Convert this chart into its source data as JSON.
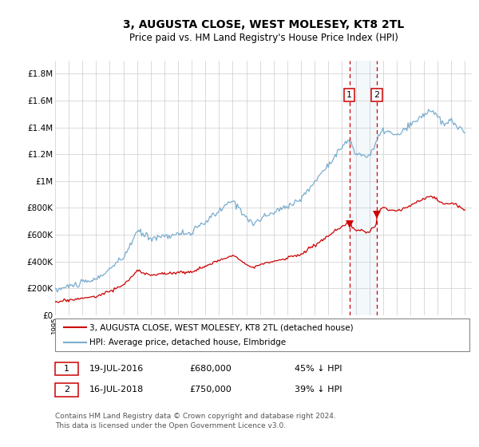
{
  "title": "3, AUGUSTA CLOSE, WEST MOLESEY, KT8 2TL",
  "subtitle": "Price paid vs. HM Land Registry's House Price Index (HPI)",
  "legend_line1": "3, AUGUSTA CLOSE, WEST MOLESEY, KT8 2TL (detached house)",
  "legend_line2": "HPI: Average price, detached house, Elmbridge",
  "sale1_date": "19-JUL-2016",
  "sale1_price": 680000,
  "sale2_date": "16-JUL-2018",
  "sale2_price": 750000,
  "sale1_pct": "45% ↓ HPI",
  "sale2_pct": "39% ↓ HPI",
  "footnote": "Contains HM Land Registry data © Crown copyright and database right 2024.\nThis data is licensed under the Open Government Licence v3.0.",
  "ylim": [
    0,
    1900000
  ],
  "yticks": [
    0,
    200000,
    400000,
    600000,
    800000,
    1000000,
    1200000,
    1400000,
    1600000,
    1800000
  ],
  "ytick_labels": [
    "£0",
    "£200K",
    "£400K",
    "£600K",
    "£800K",
    "£1M",
    "£1.2M",
    "£1.4M",
    "£1.6M",
    "£1.8M"
  ],
  "red_color": "#cc0000",
  "blue_color": "#7aadcf",
  "grid_color": "#cccccc",
  "background_color": "#ffffff",
  "shaded_color": "#d8e8f4",
  "marker_box_color": "#cc0000",
  "title_fontsize": 10,
  "subtitle_fontsize": 8.5,
  "axis_fontsize": 7.5,
  "legend_fontsize": 7.5,
  "table_fontsize": 8,
  "footnote_fontsize": 6.5,
  "sale1_x": 2016.54,
  "sale2_x": 2018.54
}
